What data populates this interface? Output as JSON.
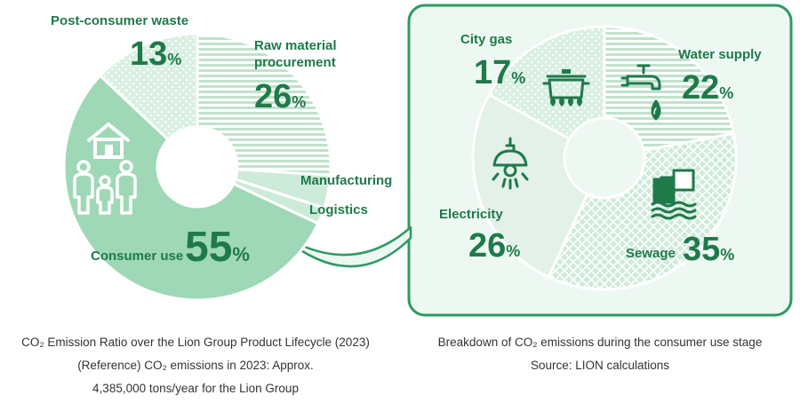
{
  "colors": {
    "accent": "#1f7a4a",
    "primary_green": "#2e9a62",
    "consumer_use_fill": "#9fd8b6",
    "light_green": "#cdebd9",
    "panel_bg": "#eef8f2",
    "panel_border": "#2e9a62",
    "electricity_fill": "#e3f1e8"
  },
  "chart_data": [
    {
      "type": "pie",
      "variant": "donut",
      "categories": [
        "Raw material procurement",
        "Manufacturing",
        "Logistics",
        "Consumer use",
        "Post-consumer waste"
      ],
      "values": [
        26,
        4,
        2,
        55,
        13
      ],
      "unit": "%",
      "labels": {
        "raw": [
          "Raw material",
          "procurement"
        ],
        "manufacturing": "Manufacturing",
        "logistics": "Logistics",
        "consumer": "Consumer use",
        "waste": "Post-consumer waste"
      },
      "pct_labels": {
        "raw": "26",
        "consumer": "55",
        "waste": "13"
      },
      "percent_sign": "%",
      "icons": [
        "house-icon",
        "family-icon"
      ]
    },
    {
      "type": "pie",
      "variant": "donut",
      "categories": [
        "Water supply",
        "Sewage",
        "Electricity",
        "City gas"
      ],
      "values": [
        22,
        35,
        26,
        17
      ],
      "unit": "%",
      "labels": {
        "water": "Water supply",
        "sewage": "Sewage",
        "electricity": "Electricity",
        "gas": "City gas"
      },
      "pct_labels": {
        "water": "22",
        "sewage": "35",
        "electricity": "26",
        "gas": "17"
      },
      "percent_sign": "%",
      "icons": [
        "faucet-icon",
        "sewage-pipe-icon",
        "light-bulb-icon",
        "cooking-pot-icon"
      ]
    }
  ],
  "captions": {
    "left": [
      "CO₂ Emission Ratio over the Lion Group Product Lifecycle (2023)",
      "(Reference) CO₂ emissions in 2023: Approx.",
      "4,385,000 tons/year for the Lion Group"
    ],
    "right": [
      "Breakdown of CO₂ emissions during the consumer use stage",
      "Source: LION calculations"
    ]
  }
}
